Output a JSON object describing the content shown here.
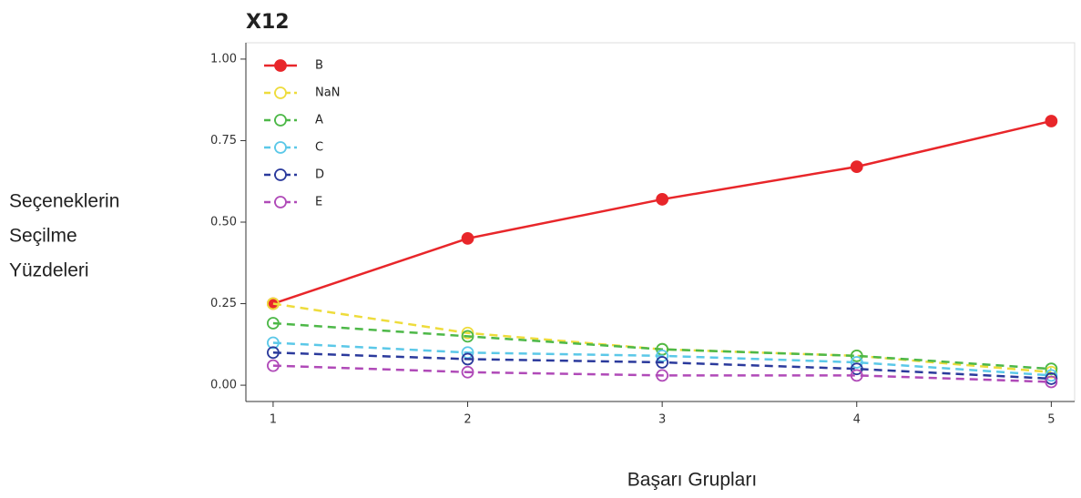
{
  "chart_data": {
    "type": "line",
    "title": "X12",
    "xlabel": "Başarı Grupları",
    "ylabel": [
      "Seçeneklerin",
      "Seçilme",
      "Yüzdeleri"
    ],
    "x": [
      1,
      2,
      3,
      4,
      5
    ],
    "series": [
      {
        "name": "B",
        "color": "#e8262a",
        "linestyle": "solid",
        "values": [
          0.25,
          0.45,
          0.57,
          0.67,
          0.81
        ]
      },
      {
        "name": "NaN",
        "color": "#eedc3c",
        "linestyle": "dashed",
        "values": [
          0.25,
          0.16,
          0.11,
          0.09,
          0.04
        ]
      },
      {
        "name": "A",
        "color": "#4db848",
        "linestyle": "dashed",
        "values": [
          0.19,
          0.15,
          0.11,
          0.09,
          0.05
        ]
      },
      {
        "name": "C",
        "color": "#5bc8e8",
        "linestyle": "dashed",
        "values": [
          0.13,
          0.1,
          0.09,
          0.07,
          0.03
        ]
      },
      {
        "name": "D",
        "color": "#2b3a9c",
        "linestyle": "dashed",
        "values": [
          0.1,
          0.08,
          0.07,
          0.05,
          0.02
        ]
      },
      {
        "name": "E",
        "color": "#b04ab8",
        "linestyle": "dashed",
        "values": [
          0.06,
          0.04,
          0.03,
          0.03,
          0.01
        ]
      }
    ],
    "xlim": [
      0.86,
      5.12
    ],
    "xticks": [
      1,
      2,
      3,
      4,
      5
    ],
    "ylim": [
      -0.05,
      1.05
    ],
    "yticks": [
      {
        "value": 0,
        "label": "0.00"
      },
      {
        "value": 0.25,
        "label": "0.25"
      },
      {
        "value": 0.5,
        "label": "0.50"
      },
      {
        "value": 0.75,
        "label": "0.75"
      },
      {
        "value": 1,
        "label": "1.00"
      }
    ],
    "legend": "upper left",
    "grid": false
  }
}
